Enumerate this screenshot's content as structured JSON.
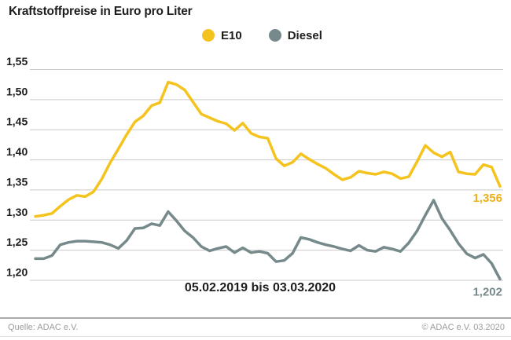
{
  "title": "Kraftstoffpreise in Euro pro Liter",
  "legend": {
    "items": [
      {
        "label": "E10",
        "color": "#F5C31D"
      },
      {
        "label": "Diesel",
        "color": "#76898B"
      }
    ]
  },
  "axis": {
    "ytick_labels": [
      "1,55",
      "1,50",
      "1,45",
      "1,40",
      "1,35",
      "1,30",
      "1,25",
      "1,20"
    ]
  },
  "footer": {
    "source": "Quelle: ADAC e.V.",
    "copyright": "© ADAC e.V.  03.2020"
  },
  "colors": {
    "e10": "#F5C31D",
    "e10_label": "#EFAF1C",
    "diesel": "#76898B",
    "grid": "#C9C9C9",
    "text": "#1D1D1B",
    "footer_text": "#9B9B9B"
  },
  "chart_data": {
    "type": "line",
    "title": "Kraftstoffpreise in Euro pro Liter",
    "unit": "Euro pro Liter",
    "x_label": "05.02.2019 bis 03.03.2020",
    "x_interval": "weekly",
    "ylim": [
      1.2,
      1.55
    ],
    "yticks": [
      1.55,
      1.5,
      1.45,
      1.4,
      1.35,
      1.3,
      1.25,
      1.2
    ],
    "grid": true,
    "legend_position": "top",
    "series": [
      {
        "name": "E10",
        "color": "#F5C31D",
        "end_label": "1,356",
        "last_value": 1.356,
        "values": [
          1.306,
          1.308,
          1.311,
          1.323,
          1.334,
          1.341,
          1.339,
          1.347,
          1.368,
          1.395,
          1.418,
          1.442,
          1.463,
          1.473,
          1.49,
          1.495,
          1.529,
          1.525,
          1.516,
          1.496,
          1.476,
          1.47,
          1.464,
          1.46,
          1.449,
          1.461,
          1.444,
          1.438,
          1.436,
          1.402,
          1.39,
          1.396,
          1.41,
          1.401,
          1.393,
          1.386,
          1.376,
          1.367,
          1.371,
          1.381,
          1.378,
          1.376,
          1.38,
          1.377,
          1.369,
          1.372,
          1.397,
          1.424,
          1.412,
          1.405,
          1.413,
          1.38,
          1.377,
          1.376,
          1.392,
          1.388,
          1.356
        ]
      },
      {
        "name": "Diesel",
        "color": "#76898B",
        "end_label": "1,202",
        "last_value": 1.202,
        "values": [
          1.236,
          1.236,
          1.241,
          1.259,
          1.263,
          1.265,
          1.265,
          1.264,
          1.263,
          1.259,
          1.253,
          1.266,
          1.286,
          1.287,
          1.294,
          1.291,
          1.314,
          1.299,
          1.282,
          1.271,
          1.256,
          1.249,
          1.253,
          1.256,
          1.246,
          1.254,
          1.246,
          1.248,
          1.245,
          1.231,
          1.233,
          1.245,
          1.271,
          1.268,
          1.263,
          1.259,
          1.256,
          1.252,
          1.249,
          1.258,
          1.25,
          1.248,
          1.255,
          1.252,
          1.248,
          1.262,
          1.282,
          1.308,
          1.333,
          1.303,
          1.283,
          1.261,
          1.244,
          1.237,
          1.243,
          1.228,
          1.202
        ]
      }
    ]
  }
}
